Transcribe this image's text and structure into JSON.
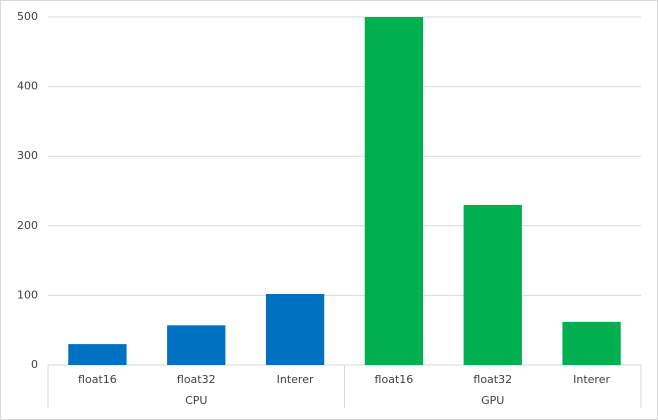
{
  "chart_data": {
    "type": "bar",
    "groups": [
      {
        "name": "CPU",
        "color": "#0070c0",
        "categories": [
          "float16",
          "float32",
          "Interer"
        ],
        "values": [
          30,
          57,
          102
        ]
      },
      {
        "name": "GPU",
        "color": "#00b050",
        "categories": [
          "float16",
          "float32",
          "Interer"
        ],
        "values": [
          500,
          230,
          62
        ]
      }
    ],
    "ylim": [
      0,
      500
    ],
    "yticks": [
      0,
      100,
      200,
      300,
      400,
      500
    ],
    "grid": true
  }
}
